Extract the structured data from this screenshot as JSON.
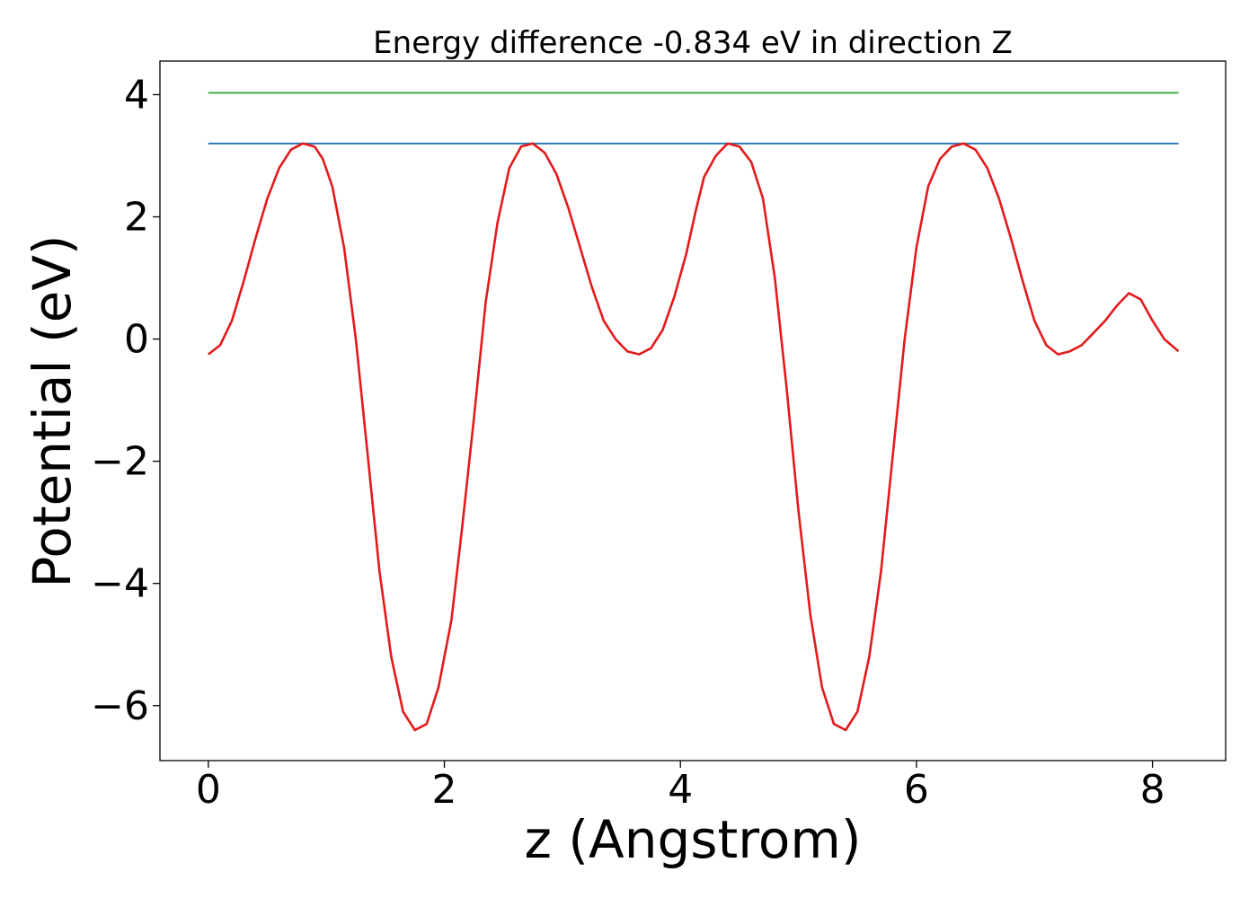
{
  "chart_data": {
    "type": "line",
    "title": "Energy difference -0.834 eV in direction Z",
    "xlabel": "z (Angstrom)",
    "ylabel": "Potential (eV)",
    "xlim": [
      -0.41,
      8.62
    ],
    "ylim": [
      -6.9,
      4.55
    ],
    "x_ticks": [
      0,
      2,
      4,
      6,
      8
    ],
    "x_tick_labels": [
      "0",
      "2",
      "4",
      "6",
      "8"
    ],
    "y_ticks": [
      4,
      2,
      0,
      -2,
      -4,
      -6
    ],
    "y_tick_labels": [
      "4",
      "2",
      "0",
      "−2",
      "−4",
      "−6"
    ],
    "grid": false,
    "legend": "none",
    "series": [
      {
        "color": "#2ca02c",
        "x": [
          0,
          8.22
        ],
        "y": [
          4.03,
          4.03
        ]
      },
      {
        "color": "#1f77b4",
        "x": [
          0,
          8.22
        ],
        "y": [
          3.2,
          3.2
        ]
      },
      {
        "color": "#e31a1c",
        "x": [
          0.0,
          0.1,
          0.2,
          0.3,
          0.4,
          0.5,
          0.6,
          0.7,
          0.8,
          0.9,
          0.97,
          1.05,
          1.15,
          1.25,
          1.35,
          1.45,
          1.55,
          1.65,
          1.75,
          1.85,
          1.95,
          2.06,
          2.15,
          2.25,
          2.35,
          2.45,
          2.55,
          2.65,
          2.75,
          2.85,
          2.95,
          3.05,
          3.15,
          3.25,
          3.35,
          3.45,
          3.55,
          3.65,
          3.75,
          3.85,
          3.95,
          4.05,
          4.13,
          4.2,
          4.3,
          4.4,
          4.5,
          4.6,
          4.7,
          4.8,
          4.9,
          5.0,
          5.1,
          5.2,
          5.3,
          5.4,
          5.5,
          5.6,
          5.7,
          5.8,
          5.9,
          6.0,
          6.1,
          6.2,
          6.3,
          6.4,
          6.5,
          6.6,
          6.7,
          6.8,
          6.9,
          7.0,
          7.1,
          7.2,
          7.3,
          7.4,
          7.5,
          7.6,
          7.7,
          7.8,
          7.9,
          8.0,
          8.1,
          8.22
        ],
        "y": [
          -0.25,
          -0.1,
          0.3,
          0.95,
          1.65,
          2.3,
          2.8,
          3.1,
          3.2,
          3.15,
          2.95,
          2.5,
          1.5,
          0.0,
          -1.9,
          -3.8,
          -5.2,
          -6.1,
          -6.4,
          -6.3,
          -5.7,
          -4.6,
          -3.1,
          -1.3,
          0.6,
          1.9,
          2.8,
          3.15,
          3.2,
          3.05,
          2.7,
          2.15,
          1.5,
          0.85,
          0.3,
          0.0,
          -0.2,
          -0.25,
          -0.15,
          0.15,
          0.7,
          1.4,
          2.1,
          2.65,
          3.0,
          3.2,
          3.15,
          2.9,
          2.3,
          1.0,
          -0.8,
          -2.8,
          -4.5,
          -5.7,
          -6.3,
          -6.4,
          -6.1,
          -5.2,
          -3.8,
          -1.9,
          0.0,
          1.5,
          2.5,
          2.95,
          3.15,
          3.2,
          3.1,
          2.8,
          2.3,
          1.65,
          0.95,
          0.3,
          -0.1,
          -0.25,
          -0.2,
          -0.1,
          0.1,
          0.3,
          0.55,
          0.75,
          0.65,
          0.3,
          0.0,
          -0.2
        ]
      }
    ]
  }
}
